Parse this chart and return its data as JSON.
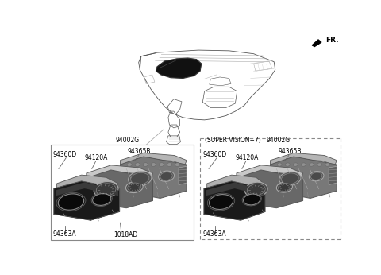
{
  "background_color": "#ffffff",
  "text_color": "#000000",
  "line_color": "#666666",
  "fr_label": "FR.",
  "label_94002G_left": "94002G",
  "label_94365B_left": "94365B",
  "label_94120A_left": "94120A",
  "label_94360D_left": "94360D",
  "label_94363A_left": "94363A",
  "label_1018AD": "1018AD",
  "label_super_vision": "(SUPER VISION+7)",
  "label_94002G_right": "94002G",
  "label_94365B_right": "94365B",
  "label_94120A_right": "94120A",
  "label_94360D_right": "94360D",
  "label_94363A_right": "94363A"
}
